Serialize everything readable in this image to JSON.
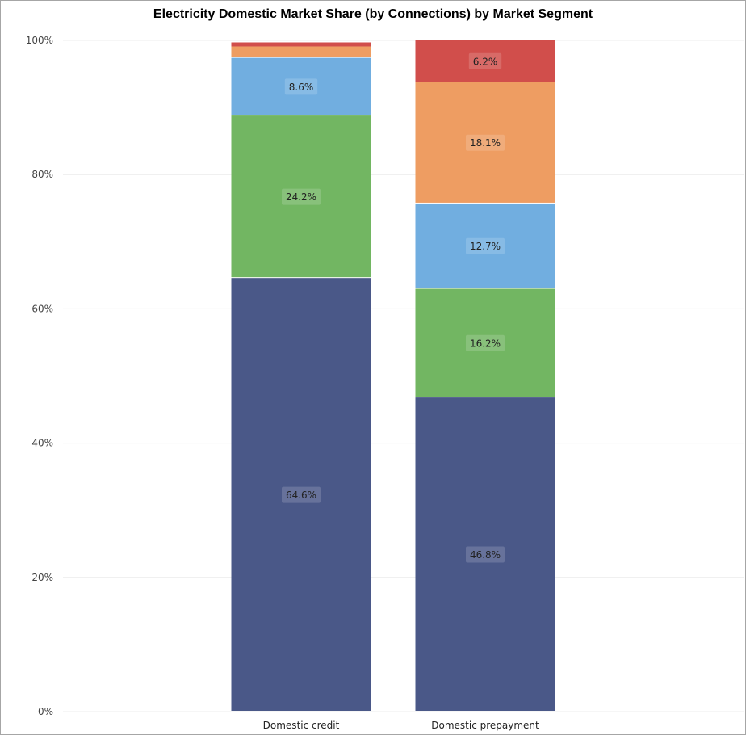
{
  "chart_data": {
    "type": "bar",
    "stacked": true,
    "title": "Electricity Domestic Market Share (by Connections) by Market Segment",
    "xlabel": "",
    "ylabel": "",
    "ylim": [
      0,
      100
    ],
    "y_tick_labels": [
      "0%",
      "20%",
      "40%",
      "60%",
      "80%",
      "100%"
    ],
    "y_tick_values": [
      0,
      20,
      40,
      60,
      80,
      100
    ],
    "grid": true,
    "legend": "none",
    "categories": [
      "Domestic credit",
      "Domestic prepayment"
    ],
    "series": [
      {
        "color": "#4a5888",
        "values": [
          64.6,
          46.8
        ],
        "labels": [
          "64.6%",
          "46.8%"
        ]
      },
      {
        "color": "#72b662",
        "values": [
          24.2,
          16.2
        ],
        "labels": [
          "24.2%",
          "16.2%"
        ]
      },
      {
        "color": "#71aee0",
        "values": [
          8.6,
          12.7
        ],
        "labels": [
          "8.6%",
          "12.7%"
        ]
      },
      {
        "color": "#ee9d62",
        "values": [
          1.7,
          18.1
        ],
        "labels": [
          "",
          "18.1%"
        ]
      },
      {
        "color": "#d14e4b",
        "values": [
          0.6,
          6.2
        ],
        "labels": [
          "",
          "6.2%"
        ]
      }
    ]
  }
}
